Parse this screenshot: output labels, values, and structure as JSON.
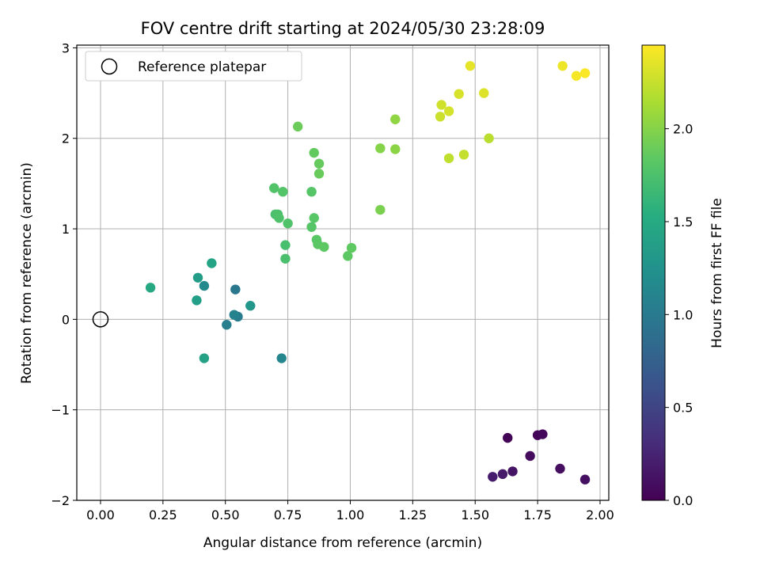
{
  "chart_data": {
    "type": "scatter",
    "title": "FOV centre drift starting at 2024/05/30 23:28:09",
    "xlabel": "Angular distance from reference (arcmin)",
    "ylabel": "Rotation from reference (arcmin)",
    "xlim": [
      -0.095,
      2.035
    ],
    "ylim": [
      -2.0,
      3.03
    ],
    "xticks": [
      0.0,
      0.25,
      0.5,
      0.75,
      1.0,
      1.25,
      1.5,
      1.75,
      2.0
    ],
    "xtick_labels": [
      "0.00",
      "0.25",
      "0.50",
      "0.75",
      "1.00",
      "1.25",
      "1.50",
      "1.75",
      "2.00"
    ],
    "yticks": [
      -2,
      -1,
      0,
      1,
      2,
      3
    ],
    "ytick_labels": [
      "−2",
      "−1",
      "0",
      "1",
      "2",
      "3"
    ],
    "grid": true,
    "legend": {
      "position": "top-left",
      "entries": [
        "Reference platepar"
      ]
    },
    "reference_point": {
      "x": 0.0,
      "y": 0.0
    },
    "colorbar": {
      "label": "Hours from first FF file",
      "colormap": "viridis",
      "range": [
        0.0,
        2.45
      ],
      "ticks": [
        0.0,
        0.5,
        1.0,
        1.5,
        2.0
      ],
      "tick_labels": [
        "0.0",
        "0.5",
        "1.0",
        "1.5",
        "2.0"
      ]
    },
    "points": [
      {
        "x": 1.63,
        "y": -1.31,
        "c": 0.02
      },
      {
        "x": 1.75,
        "y": -1.28,
        "c": 0.03
      },
      {
        "x": 1.77,
        "y": -1.27,
        "c": 0.05
      },
      {
        "x": 1.72,
        "y": -1.51,
        "c": 0.07
      },
      {
        "x": 1.84,
        "y": -1.65,
        "c": 0.09
      },
      {
        "x": 1.94,
        "y": -1.77,
        "c": 0.11
      },
      {
        "x": 1.65,
        "y": -1.68,
        "c": 0.14
      },
      {
        "x": 1.61,
        "y": -1.71,
        "c": 0.17
      },
      {
        "x": 1.57,
        "y": -1.74,
        "c": 0.2
      },
      {
        "x": 0.54,
        "y": 0.33,
        "c": 0.98
      },
      {
        "x": 0.55,
        "y": 0.03,
        "c": 1.02
      },
      {
        "x": 0.505,
        "y": -0.06,
        "c": 1.05
      },
      {
        "x": 0.535,
        "y": 0.05,
        "c": 1.08
      },
      {
        "x": 0.725,
        "y": -0.43,
        "c": 1.12
      },
      {
        "x": 0.415,
        "y": 0.37,
        "c": 1.15
      },
      {
        "x": 0.6,
        "y": 0.15,
        "c": 1.3
      },
      {
        "x": 0.39,
        "y": 0.46,
        "c": 1.35
      },
      {
        "x": 0.385,
        "y": 0.21,
        "c": 1.38
      },
      {
        "x": 0.415,
        "y": -0.43,
        "c": 1.42
      },
      {
        "x": 0.445,
        "y": 0.62,
        "c": 1.44
      },
      {
        "x": 0.2,
        "y": 0.35,
        "c": 1.48
      },
      {
        "x": 0.74,
        "y": 0.82,
        "c": 1.72
      },
      {
        "x": 0.74,
        "y": 0.67,
        "c": 1.74
      },
      {
        "x": 0.7,
        "y": 1.16,
        "c": 1.74
      },
      {
        "x": 0.71,
        "y": 1.16,
        "c": 1.75
      },
      {
        "x": 0.715,
        "y": 1.12,
        "c": 1.76
      },
      {
        "x": 0.75,
        "y": 1.06,
        "c": 1.77
      },
      {
        "x": 0.695,
        "y": 1.45,
        "c": 1.78
      },
      {
        "x": 0.73,
        "y": 1.41,
        "c": 1.79
      },
      {
        "x": 0.845,
        "y": 1.41,
        "c": 1.8
      },
      {
        "x": 0.845,
        "y": 1.02,
        "c": 1.8
      },
      {
        "x": 0.855,
        "y": 1.12,
        "c": 1.81
      },
      {
        "x": 0.865,
        "y": 0.88,
        "c": 1.82
      },
      {
        "x": 0.87,
        "y": 0.83,
        "c": 1.83
      },
      {
        "x": 0.895,
        "y": 0.8,
        "c": 1.84
      },
      {
        "x": 0.99,
        "y": 0.7,
        "c": 1.84
      },
      {
        "x": 1.005,
        "y": 0.79,
        "c": 1.85
      },
      {
        "x": 0.855,
        "y": 1.84,
        "c": 1.86
      },
      {
        "x": 0.875,
        "y": 1.72,
        "c": 1.87
      },
      {
        "x": 0.875,
        "y": 1.61,
        "c": 1.88
      },
      {
        "x": 0.79,
        "y": 2.13,
        "c": 1.9
      },
      {
        "x": 1.12,
        "y": 1.21,
        "c": 1.96
      },
      {
        "x": 1.12,
        "y": 1.89,
        "c": 2.0
      },
      {
        "x": 1.18,
        "y": 1.88,
        "c": 2.02
      },
      {
        "x": 1.18,
        "y": 2.21,
        "c": 2.04
      },
      {
        "x": 1.555,
        "y": 2.0,
        "c": 2.2
      },
      {
        "x": 1.395,
        "y": 1.78,
        "c": 2.22
      },
      {
        "x": 1.455,
        "y": 1.82,
        "c": 2.24
      },
      {
        "x": 1.36,
        "y": 2.24,
        "c": 2.26
      },
      {
        "x": 1.365,
        "y": 2.37,
        "c": 2.28
      },
      {
        "x": 1.395,
        "y": 2.3,
        "c": 2.3
      },
      {
        "x": 1.435,
        "y": 2.49,
        "c": 2.31
      },
      {
        "x": 1.535,
        "y": 2.5,
        "c": 2.33
      },
      {
        "x": 1.48,
        "y": 2.8,
        "c": 2.36
      },
      {
        "x": 1.85,
        "y": 2.8,
        "c": 2.39
      },
      {
        "x": 1.905,
        "y": 2.69,
        "c": 2.42
      },
      {
        "x": 1.94,
        "y": 2.72,
        "c": 2.44
      }
    ]
  }
}
